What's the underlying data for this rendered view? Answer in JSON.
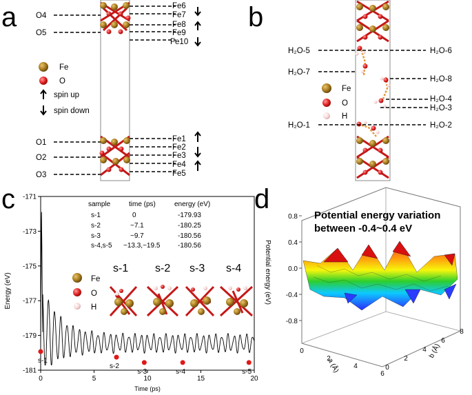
{
  "panels": {
    "a": "a",
    "b": "b",
    "c": "c",
    "d": "d"
  },
  "panel_a": {
    "left_labels": [
      "O4",
      "O5",
      "O1",
      "O2",
      "O3"
    ],
    "right_labels": [
      "Fe6",
      "Fe7",
      "Fe8",
      "Fe9",
      "Fe10",
      "Fe1",
      "Fe2",
      "Fe3",
      "Fe4",
      "Fe5"
    ],
    "legend": {
      "fe": "Fe",
      "o": "O",
      "spin_up": "spin up",
      "spin_down": "spin down"
    }
  },
  "panel_b": {
    "labels": [
      "H₂O-5",
      "H₂O-6",
      "H₂O-7",
      "H₂O-8",
      "H₂O-4",
      "H₂O-3",
      "H₂O-1",
      "H₂O-2"
    ],
    "legend": {
      "fe": "Fe",
      "o": "O",
      "h": "H"
    }
  },
  "panel_c": {
    "table_headers": [
      "sample",
      "time (ps)",
      "energy (eV)"
    ],
    "table_rows": [
      [
        "s-1",
        "0",
        "-179.93"
      ],
      [
        "s-2",
        "~7.1",
        "-180.25"
      ],
      [
        "s-3",
        "~9.7",
        "-180.56"
      ],
      [
        "s-4,s-5",
        "~13.3,~19.5",
        "-180.56"
      ]
    ],
    "legend": {
      "fe": "Fe",
      "o": "O",
      "h": "H"
    },
    "snapshot_labels": [
      "s-1",
      "s-2",
      "s-3",
      "s-4"
    ],
    "point_labels": [
      "s-1",
      "s-2",
      "s-3",
      "s-4",
      "s-5"
    ]
  },
  "chart_data": [
    {
      "type": "line",
      "panel": "c",
      "xlabel": "Time (ps)",
      "ylabel": "Energy (eV)",
      "xlim": [
        0,
        20
      ],
      "ylim": [
        -181,
        -171
      ],
      "xticks": [
        0,
        5,
        10,
        15,
        20
      ],
      "yticks": [
        -171,
        -173,
        -175,
        -177,
        -179,
        -181
      ],
      "series": [
        {
          "name": "Energy",
          "note": "AIMD energy trace, starts near -180 with spike to about -171.5, oscillates ~±0.5 around -179.5"
        }
      ],
      "points": [
        {
          "label": "s-1",
          "x": 0,
          "y": -179.93
        },
        {
          "label": "s-2",
          "x": 7.1,
          "y": -180.25
        },
        {
          "label": "s-3",
          "x": 9.7,
          "y": -180.56
        },
        {
          "label": "s-4",
          "x": 13.3,
          "y": -180.56
        },
        {
          "label": "s-5",
          "x": 19.5,
          "y": -180.56
        }
      ]
    },
    {
      "type": "surface",
      "panel": "d",
      "title": "Potential energy  variation between -0.4~0.4 eV",
      "zlabel": "Potential energy (eV)",
      "xlabel": "a (Å)",
      "ylabel": "b (Å)",
      "zticks": [
        "0.8",
        "0.4",
        "0.0",
        "-0.4",
        "-0.8"
      ],
      "xticks": [
        "0",
        "2",
        "4",
        "6"
      ],
      "yticks": [
        "0",
        "2",
        "4",
        "6",
        "8"
      ],
      "zlim": [
        -0.8,
        0.8
      ]
    }
  ]
}
